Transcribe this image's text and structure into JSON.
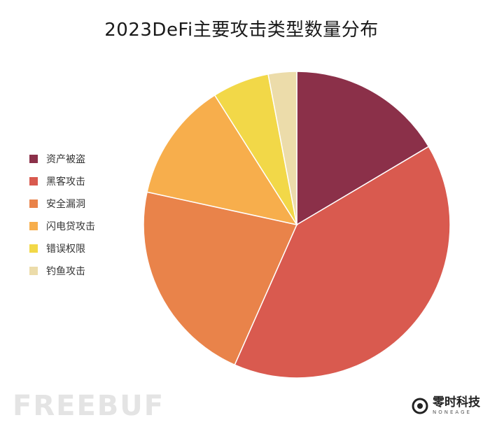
{
  "chart_data": {
    "type": "pie",
    "title": "2023DeFi主要攻击类型数量分布",
    "legend_position": "left",
    "start_angle_deg": 0,
    "direction": "clockwise",
    "categories": [
      "资产被盗",
      "黑客攻击",
      "安全漏洞",
      "闪电贷攻击",
      "错误权限",
      "钓鱼攻击"
    ],
    "values": [
      16.5,
      40.2,
      21.8,
      12.6,
      6.0,
      3.0
    ],
    "colors": [
      "#8b3049",
      "#d95a4f",
      "#e9834a",
      "#f7ae4c",
      "#f2d848",
      "#ecdcaa"
    ]
  },
  "watermark": {
    "text": "FREEBUF"
  },
  "brand": {
    "name": "零时科技",
    "sub": "NONEAGE",
    "logo_icon": "noneage-logo-icon"
  }
}
